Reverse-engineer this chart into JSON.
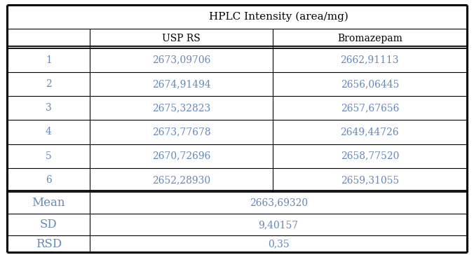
{
  "title": "HPLC Intensity (area/mg)",
  "col_headers": [
    "USP RS",
    "Bromazepam"
  ],
  "row_labels": [
    "1",
    "2",
    "3",
    "4",
    "5",
    "6"
  ],
  "usp_rs": [
    "2673,09706",
    "2674,91494",
    "2675,32823",
    "2673,77678",
    "2670,72696",
    "2652,28930"
  ],
  "bromazepam": [
    "2662,91113",
    "2656,06445",
    "2657,67656",
    "2649,44726",
    "2658,77520",
    "2659,31055"
  ],
  "stats_labels": [
    "Mean",
    "SD",
    "RSD"
  ],
  "stats_values": [
    "2663,69320",
    "9,40157",
    "0,35"
  ],
  "header_color": "#000000",
  "data_color": "#6688bb",
  "stats_label_color": "#6688bb",
  "stats_value_color": "#6688bb",
  "bg_color": "#ffffff",
  "data_font_size": 10,
  "header_font_size": 11,
  "stats_font_size": 12,
  "num_label_font_size": 10
}
